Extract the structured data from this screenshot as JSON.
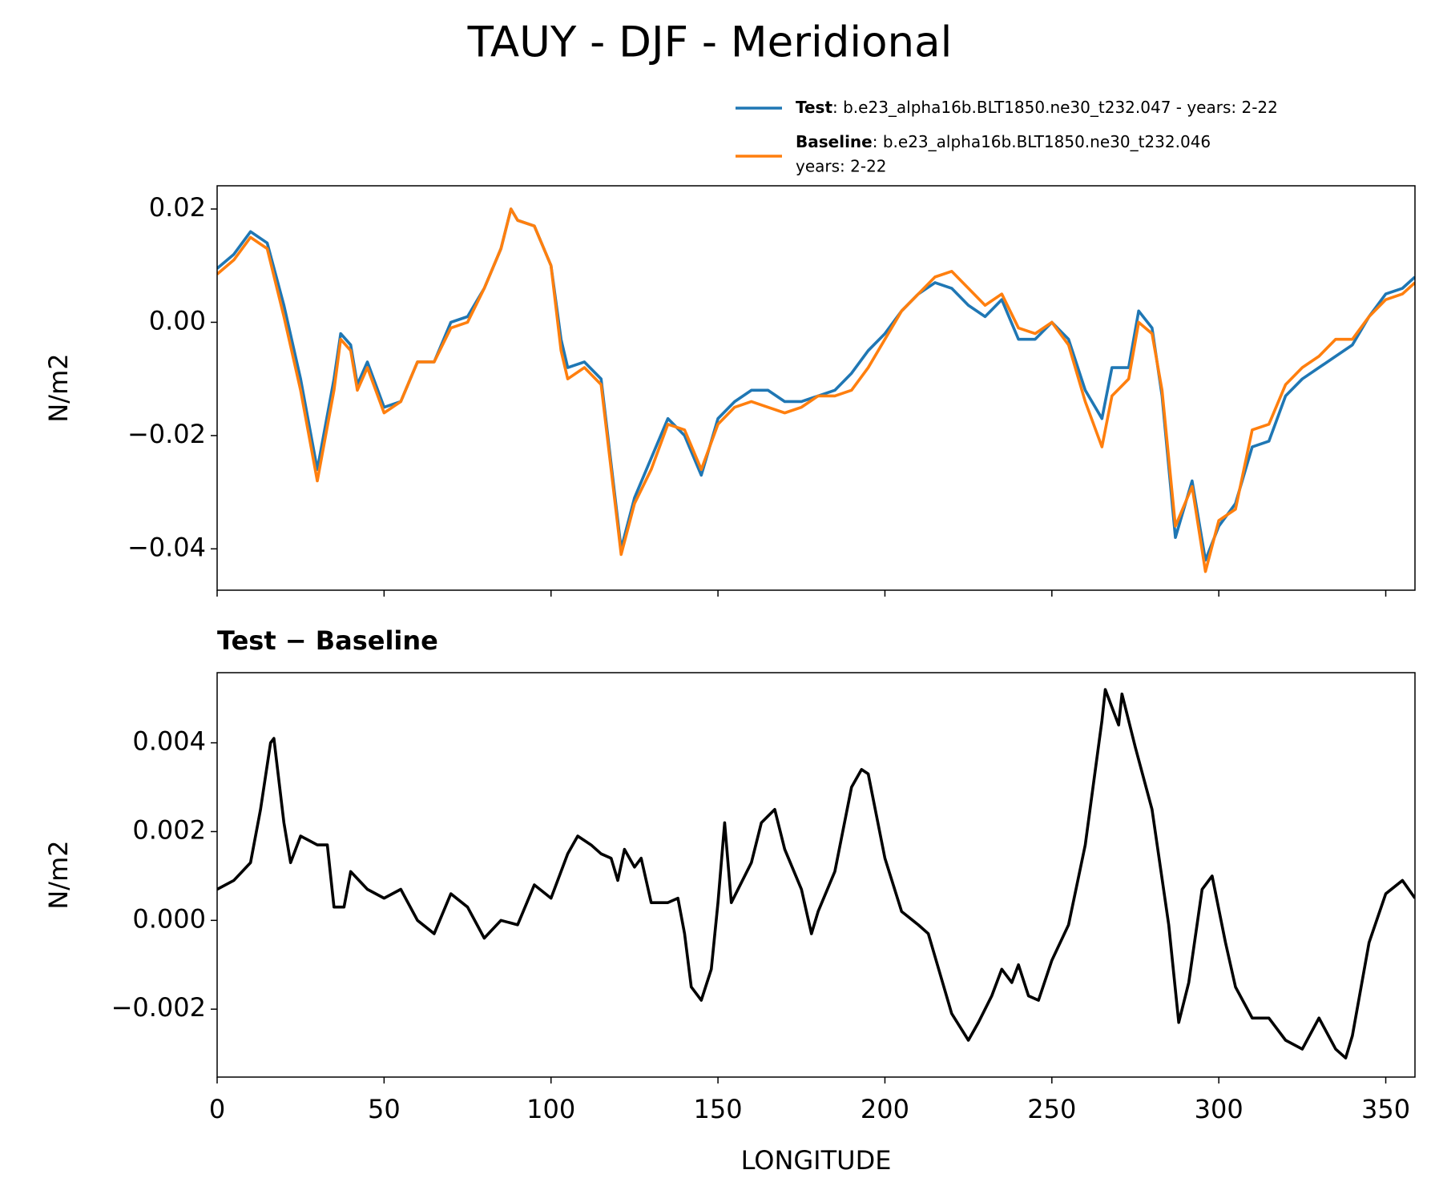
{
  "title": "TAUY - DJF - Meridional",
  "chart_data": [
    {
      "type": "line",
      "ylabel": "N/m2",
      "x": [
        0,
        5,
        10,
        15,
        20,
        25,
        30,
        35,
        37,
        40,
        42,
        45,
        50,
        55,
        60,
        65,
        70,
        75,
        80,
        85,
        88,
        90,
        95,
        100,
        103,
        105,
        110,
        115,
        118,
        121,
        125,
        130,
        135,
        140,
        145,
        150,
        155,
        160,
        165,
        170,
        175,
        180,
        185,
        190,
        195,
        200,
        205,
        210,
        215,
        220,
        225,
        230,
        235,
        240,
        245,
        250,
        255,
        260,
        265,
        268,
        273,
        276,
        280,
        283,
        287,
        292,
        296,
        300,
        305,
        310,
        315,
        320,
        325,
        330,
        335,
        340,
        345,
        350,
        355,
        358.75
      ],
      "series": [
        {
          "name": "Test",
          "description": [
            ": b.e23_alpha16b.BLT1850.ne30_t232.047 - years: 2-22"
          ],
          "color": "#1f77b4",
          "values": [
            0.0095,
            0.012,
            0.016,
            0.014,
            0.003,
            -0.01,
            -0.026,
            -0.01,
            -0.002,
            -0.004,
            -0.011,
            -0.007,
            -0.015,
            -0.014,
            -0.007,
            -0.007,
            0.0,
            0.001,
            0.006,
            0.013,
            0.02,
            0.018,
            0.017,
            0.01,
            -0.003,
            -0.008,
            -0.007,
            -0.01,
            -0.025,
            -0.04,
            -0.031,
            -0.024,
            -0.017,
            -0.02,
            -0.027,
            -0.017,
            -0.014,
            -0.012,
            -0.012,
            -0.014,
            -0.014,
            -0.013,
            -0.012,
            -0.009,
            -0.005,
            -0.002,
            0.002,
            0.005,
            0.007,
            0.006,
            0.003,
            0.001,
            0.004,
            -0.003,
            -0.003,
            0.0,
            -0.003,
            -0.012,
            -0.017,
            -0.008,
            -0.008,
            0.002,
            -0.001,
            -0.013,
            -0.038,
            -0.028,
            -0.042,
            -0.036,
            -0.032,
            -0.022,
            -0.021,
            -0.013,
            -0.01,
            -0.008,
            -0.006,
            -0.004,
            0.001,
            0.005,
            0.006,
            0.008
          ]
        },
        {
          "name": "Baseline",
          "description": [
            ": b.e23_alpha16b.BLT1850.ne30_t232.046",
            "years: 2-22"
          ],
          "color": "#ff7f0e",
          "values": [
            0.0085,
            0.011,
            0.015,
            0.013,
            0.001,
            -0.012,
            -0.028,
            -0.012,
            -0.003,
            -0.005,
            -0.012,
            -0.008,
            -0.016,
            -0.014,
            -0.007,
            -0.007,
            -0.001,
            0.0,
            0.006,
            0.013,
            0.02,
            0.018,
            0.017,
            0.01,
            -0.005,
            -0.01,
            -0.008,
            -0.011,
            -0.026,
            -0.041,
            -0.032,
            -0.026,
            -0.018,
            -0.019,
            -0.026,
            -0.018,
            -0.015,
            -0.014,
            -0.015,
            -0.016,
            -0.015,
            -0.013,
            -0.013,
            -0.012,
            -0.008,
            -0.003,
            0.002,
            0.005,
            0.008,
            0.009,
            0.006,
            0.003,
            0.005,
            -0.001,
            -0.002,
            0.0,
            -0.004,
            -0.014,
            -0.022,
            -0.013,
            -0.01,
            0.0,
            -0.002,
            -0.012,
            -0.036,
            -0.029,
            -0.044,
            -0.035,
            -0.033,
            -0.019,
            -0.018,
            -0.011,
            -0.008,
            -0.006,
            -0.003,
            -0.003,
            0.001,
            0.004,
            0.005,
            0.007
          ]
        }
      ],
      "xlim": [
        0,
        358.75
      ],
      "ylim": [
        -0.0473,
        0.0241
      ],
      "yticks": [
        {
          "value": -0.04,
          "label": "−0.04"
        },
        {
          "value": -0.02,
          "label": "−0.02"
        },
        {
          "value": 0,
          "label": "0.00"
        },
        0.02
      ]
    },
    {
      "type": "line",
      "title": "Test − Baseline",
      "ylabel": "N/m2",
      "xlabel": "LONGITUDE",
      "x": [
        0,
        5,
        10,
        13,
        16,
        17,
        20,
        22,
        25,
        30,
        33,
        35,
        38,
        40,
        45,
        50,
        55,
        60,
        65,
        70,
        75,
        80,
        85,
        90,
        95,
        100,
        105,
        108,
        112,
        115,
        118,
        120,
        122,
        125,
        127,
        130,
        135,
        138,
        140,
        142,
        145,
        148,
        150,
        152,
        154,
        160,
        163,
        167,
        170,
        175,
        178,
        180,
        185,
        190,
        193,
        195,
        200,
        205,
        210,
        213,
        220,
        225,
        228,
        232,
        235,
        238,
        240,
        243,
        246,
        250,
        255,
        260,
        265,
        266,
        270,
        271,
        275,
        280,
        285,
        288,
        291,
        295,
        298,
        302,
        305,
        310,
        315,
        320,
        325,
        330,
        335,
        338,
        340,
        345,
        350,
        355,
        358.75
      ],
      "series": [
        {
          "name": "Test − Baseline",
          "color": "#000000",
          "values": [
            0.0007,
            0.0009,
            0.0013,
            0.0025,
            0.004,
            0.0041,
            0.0022,
            0.0013,
            0.0019,
            0.0017,
            0.0017,
            0.0003,
            0.0003,
            0.0011,
            0.0007,
            0.0005,
            0.0007,
            0.0,
            -0.0003,
            0.0006,
            0.0003,
            -0.0004,
            0.0,
            -0.0001,
            0.0008,
            0.0005,
            0.0015,
            0.0019,
            0.0017,
            0.0015,
            0.0014,
            0.0009,
            0.0016,
            0.0012,
            0.0014,
            0.0004,
            0.0004,
            0.0005,
            -0.0003,
            -0.0015,
            -0.0018,
            -0.0011,
            0.0004,
            0.0022,
            0.0004,
            0.0013,
            0.0022,
            0.0025,
            0.0016,
            0.0007,
            -0.0003,
            0.0002,
            0.0011,
            0.003,
            0.0034,
            0.0033,
            0.0014,
            0.0002,
            -0.0001,
            -0.0003,
            -0.0021,
            -0.0027,
            -0.0023,
            -0.0017,
            -0.0011,
            -0.0014,
            -0.001,
            -0.0017,
            -0.0018,
            -0.0009,
            -0.0001,
            0.0017,
            0.0045,
            0.0052,
            0.0044,
            0.0051,
            0.0039,
            0.0025,
            -0.0001,
            -0.0023,
            -0.0014,
            0.0007,
            0.001,
            -0.0005,
            -0.0015,
            -0.0022,
            -0.0022,
            -0.0027,
            -0.0029,
            -0.0022,
            -0.0029,
            -0.0031,
            -0.0026,
            -0.0005,
            0.0006,
            0.0009,
            0.0005
          ]
        }
      ],
      "xlim": [
        0,
        358.75
      ],
      "ylim": [
        -0.00353,
        0.00558
      ],
      "xticks": [
        0,
        50,
        100,
        150,
        200,
        250,
        300,
        350
      ],
      "yticks": [
        {
          "value": -0.002,
          "label": "−0.002"
        },
        {
          "value": 0,
          "label": "0.000"
        },
        0.002,
        0.004
      ]
    }
  ]
}
